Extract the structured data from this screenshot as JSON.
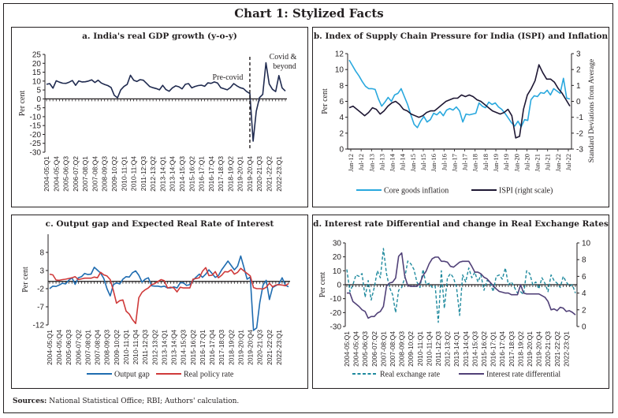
{
  "title": "Chart 1: Stylized Facts",
  "sources_label": "Sources:",
  "sources_text": "National Statistical Office; RBI; Authors' calculation.",
  "chart_data": [
    {
      "id": "a",
      "type": "line",
      "title": "a. India's real GDP growth (y-o-y)",
      "ylabel": "Per cent",
      "ylim": [
        -30,
        25
      ],
      "yticks": [
        25,
        20,
        15,
        10,
        5,
        0,
        -5,
        -10,
        -15,
        -20,
        -25,
        -30
      ],
      "xtick_labels": [
        "2004-05:Q1",
        "2004-05:Q4",
        "2005-06:Q3",
        "2006-07:Q2",
        "2007-08:Q1",
        "2007-08:Q4",
        "2008-09:Q3",
        "2009-10:Q2",
        "2010-11:Q1",
        "2010-11:Q4",
        "2011-12:Q3",
        "2012-13:Q2",
        "2013-14:Q1",
        "2013-14:Q4",
        "2014-15:Q3",
        "2015-16:Q2",
        "2016-17:Q1",
        "2016-17:Q4",
        "2017-18:Q3",
        "2018-19:Q2",
        "2019-20:Q1",
        "2019-20:Q4",
        "2020-21:Q3",
        "2021-22:Q2",
        "2022-23:Q1"
      ],
      "annotations": [
        "Pre-covid",
        "Covid & beyond"
      ],
      "covid_divider_index": 63,
      "series": [
        {
          "name": "Real GDP growth",
          "color": "#1f2a4f",
          "values": [
            8.2,
            8.6,
            6.0,
            10.2,
            9.4,
            8.8,
            8.7,
            9.4,
            10.3,
            7.6,
            10.1,
            9.5,
            9.6,
            10.0,
            10.7,
            9.2,
            10.5,
            8.9,
            8.1,
            7.5,
            6.4,
            2.0,
            0.6,
            5.1,
            7.0,
            8.2,
            13.3,
            10.5,
            9.8,
            10.8,
            10.5,
            8.7,
            6.9,
            6.3,
            5.8,
            5.1,
            7.6,
            5.2,
            4.3,
            6.2,
            7.3,
            6.8,
            5.6,
            8.2,
            8.6,
            6.2,
            7.0,
            7.5,
            7.7,
            7.1,
            9.0,
            8.7,
            9.5,
            8.9,
            6.3,
            5.7,
            5.1,
            6.4,
            8.6,
            7.3,
            6.3,
            5.8,
            4.1,
            3.0,
            -23.8,
            -7.0,
            0.7,
            2.5,
            20.3,
            8.4,
            5.4,
            4.1,
            13.1,
            6.2,
            4.4
          ]
        }
      ]
    },
    {
      "id": "b",
      "type": "line",
      "title": "b. Index of Supply Chain Pressure for India (ISPI) and Inflation",
      "ylabel": "Per cent",
      "ylabel_right": "Standard Deviations from Average",
      "ylim": [
        0,
        12
      ],
      "ylim_right": [
        -3,
        3
      ],
      "yticks": [
        12,
        10,
        8,
        6,
        4,
        2,
        0
      ],
      "yticks_right": [
        3,
        2,
        1,
        0,
        -1,
        -2,
        -3
      ],
      "xtick_labels": [
        "Jan-12",
        "Jul-12",
        "Jan-13",
        "Jul-13",
        "Jan-14",
        "Jul-14",
        "Jan-15",
        "Jul-15",
        "Jan-16",
        "Jul-16",
        "Jan-17",
        "Jul-17",
        "Jan-18",
        "Jul-18",
        "Jan-19",
        "Jul-19",
        "Jan-20",
        "Jul-20",
        "Jan-21",
        "Jul-21",
        "Jan-22",
        "Jul-22"
      ],
      "legend_position": "bottom",
      "series": [
        {
          "name": "Core goods inflation",
          "color": "#29a8de",
          "axis": "left",
          "values": [
            11.2,
            10.5,
            9.8,
            9.2,
            8.5,
            7.9,
            7.6,
            7.6,
            7.5,
            6.3,
            5.4,
            5.9,
            6.5,
            6.0,
            6.8,
            7.0,
            7.6,
            6.6,
            5.6,
            4.3,
            3.1,
            2.7,
            3.5,
            4.1,
            3.4,
            3.7,
            4.5,
            4.3,
            4.7,
            4.2,
            4.9,
            5.1,
            4.9,
            5.3,
            4.8,
            3.4,
            4.4,
            4.3,
            4.4,
            4.5,
            5.8,
            5.4,
            5.2,
            5.9,
            5.6,
            5.8,
            5.3,
            5.0,
            4.5,
            3.9,
            3.3,
            2.9,
            3.5,
            2.8,
            3.7,
            3.6,
            6.2,
            6.7,
            6.6,
            7.1,
            7.0,
            7.4,
            6.8,
            7.6,
            7.3,
            7.0,
            8.9,
            6.4,
            6.3
          ]
        },
        {
          "name": "ISPI (right scale)",
          "color": "#1e1733",
          "axis": "right",
          "values": [
            -0.4,
            -0.3,
            -0.5,
            -0.7,
            -0.9,
            -0.7,
            -0.4,
            -0.5,
            -0.8,
            -0.6,
            -0.3,
            -0.1,
            0.0,
            -0.2,
            -0.5,
            -0.6,
            -0.8,
            -0.9,
            -1.0,
            -0.9,
            -0.7,
            -0.6,
            -0.6,
            -0.4,
            -0.2,
            0.0,
            0.1,
            0.2,
            0.2,
            0.4,
            0.3,
            0.4,
            0.3,
            0.1,
            0.0,
            -0.2,
            -0.4,
            -0.6,
            -0.7,
            -0.8,
            -0.7,
            -0.5,
            -0.9,
            -2.3,
            -2.2,
            -0.5,
            0.4,
            0.8,
            1.3,
            2.3,
            1.8,
            1.4,
            1.4,
            1.2,
            0.8,
            0.5,
            0.1,
            -0.3
          ]
        }
      ]
    },
    {
      "id": "c",
      "type": "line",
      "title": "c. Output gap and Expected Real Rate of Interest",
      "ylabel": "Per cent",
      "ylim": [
        -12,
        13
      ],
      "yticks": [
        8,
        3,
        -2,
        -7,
        -12
      ],
      "xtick_labels": [
        "2004-05:Q1",
        "2004-05:Q4",
        "2005-06:Q3",
        "2006-07:Q2",
        "2007-08:Q1",
        "2007-08:Q4",
        "2008-09:Q3",
        "2009-10:Q2",
        "2010-11:Q1",
        "2010-11:Q4",
        "2011-12:Q3",
        "2012-13:Q2",
        "2013-14:Q1",
        "2013-14:Q4",
        "2014-15:Q3",
        "2015-16:Q2",
        "2016-17:Q1",
        "2016-17:Q4",
        "2017-18:Q3",
        "2018-19:Q2",
        "2019-20:Q1",
        "2019-20:Q4",
        "2020-21:Q3",
        "2021-22:Q2",
        "2022-23:Q1"
      ],
      "legend_position": "bottom",
      "series": [
        {
          "name": "Output gap",
          "color": "#1f6cb0",
          "values": [
            -2.0,
            -1.3,
            -1.4,
            -1.0,
            -0.5,
            -0.7,
            0.3,
            1.0,
            -0.8,
            1.0,
            1.3,
            2.2,
            1.9,
            2.0,
            3.9,
            3.1,
            2.3,
            0.8,
            -2.0,
            -4.0,
            -0.9,
            -0.4,
            -0.7,
            0.6,
            1.3,
            1.2,
            2.4,
            2.9,
            1.7,
            -0.2,
            0.6,
            1.0,
            -1.2,
            -1.3,
            -1.3,
            -1.5,
            -1.3,
            -1.8,
            -1.8,
            -1.5,
            -1.8,
            -0.4,
            -0.4,
            -1.1,
            -0.9,
            0.3,
            1.2,
            2.0,
            1.1,
            2.0,
            3.2,
            2.2,
            1.1,
            1.6,
            3.2,
            4.4,
            5.6,
            4.4,
            3.2,
            4.2,
            7.0,
            3.9,
            0.6,
            1.2,
            -13.5,
            -12.8,
            -5.8,
            -1.0,
            0.3,
            -5.0,
            -1.7,
            -1.2,
            -0.7,
            1.0,
            -1.0,
            -1.5
          ]
        },
        {
          "name": "Real policy rate",
          "color": "#cf3a3a",
          "values": [
            2.0,
            1.8,
            0.4,
            0.3,
            0.5,
            0.6,
            0.8,
            1.0,
            1.3,
            0.5,
            0.7,
            0.9,
            0.9,
            0.9,
            1.2,
            1.0,
            2.5,
            1.8,
            1.5,
            0.5,
            -2.5,
            -6.0,
            -5.3,
            -5.1,
            -8.2,
            -9.0,
            -10.5,
            -11.6,
            -4.5,
            -3.0,
            -2.3,
            -1.8,
            -0.9,
            -0.6,
            0.0,
            0.5,
            0.2,
            -1.8,
            -1.6,
            -1.8,
            -2.9,
            -1.6,
            -1.8,
            -1.8,
            -1.8,
            0.6,
            0.8,
            1.0,
            2.8,
            3.8,
            1.6,
            1.7,
            2.7,
            1.0,
            1.7,
            2.7,
            2.6,
            3.2,
            2.0,
            2.5,
            3.6,
            2.9,
            2.2,
            1.5,
            -1.7,
            -2.0,
            -2.0,
            -2.1,
            -1.6,
            -0.5,
            -1.5,
            -1.0,
            -0.9,
            -1.0,
            -1.2,
            -0.6
          ]
        }
      ]
    },
    {
      "id": "d",
      "type": "line",
      "title": "d. Interest rate Differential and change in Real Exchange Rates",
      "ylabel": "Per cent",
      "ylim": [
        -30,
        30
      ],
      "ylim_right": [
        0,
        10
      ],
      "yticks": [
        30,
        20,
        10,
        0,
        -10,
        -20,
        -30
      ],
      "yticks_right": [
        10,
        8,
        6,
        4,
        2,
        0
      ],
      "xtick_labels": [
        "2004-05:Q1",
        "2004-05:Q4",
        "2005-06:Q3",
        "2006-07:Q2",
        "2007-08:Q1",
        "2007-08:Q4",
        "2008-09:Q3",
        "2009-10:Q2",
        "2010-11:Q1",
        "2010-11:Q4",
        "2011-12:Q3",
        "2012-13:Q2",
        "2013-14:Q1",
        "2013-14:Q4",
        "2014-15:Q3",
        "2015-16:Q2",
        "2016-17:Q1",
        "2016-17:Q4",
        "2017-18:Q3",
        "2018-19:Q2",
        "2019-20:Q1",
        "2019-20:Q4",
        "2020-21:Q3",
        "2021-22:Q2",
        "2022-23:Q1"
      ],
      "legend_position": "bottom",
      "series": [
        {
          "name": "Real exchange rate",
          "color": "#1f8a9e",
          "axis": "left",
          "dashed": true,
          "values": [
            11,
            -5,
            0,
            7,
            6,
            8,
            -9,
            3,
            -11,
            -2,
            10,
            5,
            26,
            8,
            -2,
            -7,
            -20,
            -4,
            -2,
            5,
            17,
            15,
            11,
            2,
            -2,
            11,
            0,
            1,
            -2,
            -1,
            -27,
            10,
            -17,
            5,
            8,
            5,
            -2,
            -22,
            7,
            2,
            12,
            5,
            9,
            2,
            7,
            -4,
            3,
            2,
            -5,
            6,
            7,
            4,
            12,
            0,
            2,
            -2,
            -6,
            -5,
            -7,
            10,
            8,
            0,
            2,
            -3,
            5,
            1,
            -5,
            7,
            3,
            1,
            -2,
            6,
            2,
            -1,
            0,
            -6
          ]
        },
        {
          "name": "Interest rate differential",
          "color": "#514178",
          "axis": "right",
          "values": [
            4.0,
            4.0,
            3.0,
            2.7,
            2.4,
            2.0,
            1.8,
            1.0,
            1.2,
            1.2,
            1.6,
            1.8,
            2.4,
            4.8,
            5.2,
            5.3,
            5.8,
            8.4,
            8.8,
            6.0,
            4.9,
            4.8,
            4.8,
            4.8,
            5.2,
            6.1,
            6.6,
            7.5,
            8.1,
            8.3,
            8.3,
            7.8,
            7.8,
            7.7,
            7.2,
            7.1,
            7.4,
            7.7,
            7.8,
            7.8,
            7.8,
            7.2,
            6.5,
            6.5,
            6.3,
            5.9,
            5.7,
            5.3,
            4.9,
            4.5,
            4.2,
            4.1,
            4.0,
            4.0,
            3.8,
            3.8,
            3.8,
            5.0,
            4.0,
            3.9,
            3.9,
            3.9,
            3.9,
            3.9,
            3.7,
            3.5,
            3.0,
            2.0,
            2.1,
            1.9,
            2.3,
            2.2,
            1.8,
            1.9,
            1.7,
            1.4
          ]
        }
      ]
    }
  ],
  "legends": {
    "b": [
      "Core goods inflation",
      "ISPI (right scale)"
    ],
    "c": [
      "Output gap",
      "Real policy rate"
    ],
    "d": [
      "Real exchange rate",
      "Interest rate differential"
    ]
  }
}
